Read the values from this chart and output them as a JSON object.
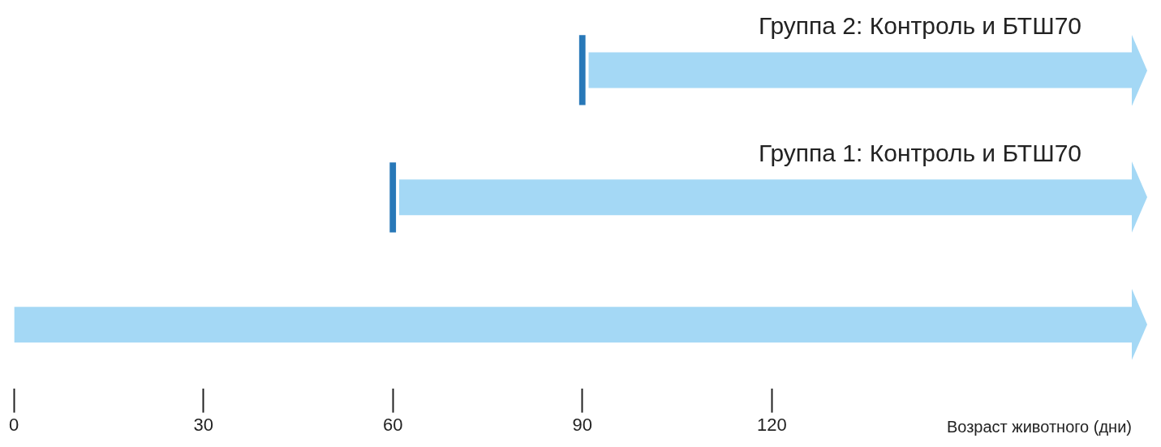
{
  "chart_data": {
    "type": "bar",
    "orientation": "horizontal",
    "categories": [
      "Группа 2: Контроль и БТШ70",
      "Группа 1: Контроль и БТШ70",
      null
    ],
    "series": [
      {
        "color": "#2878b8",
        "values": [
          1,
          1,
          null
        ],
        "base": [
          89.5,
          59.5,
          null
        ]
      },
      {
        "color": "#a4d8f5",
        "values": [
          86,
          116,
          177
        ],
        "base": [
          91,
          61,
          0
        ]
      }
    ],
    "xlim": [
      0,
      177
    ],
    "xticks": [
      0,
      30,
      60,
      90,
      120
    ],
    "xlabel": "Возраст животного (дни)",
    "tick_labels": "x",
    "grid": false,
    "legend": false
  }
}
